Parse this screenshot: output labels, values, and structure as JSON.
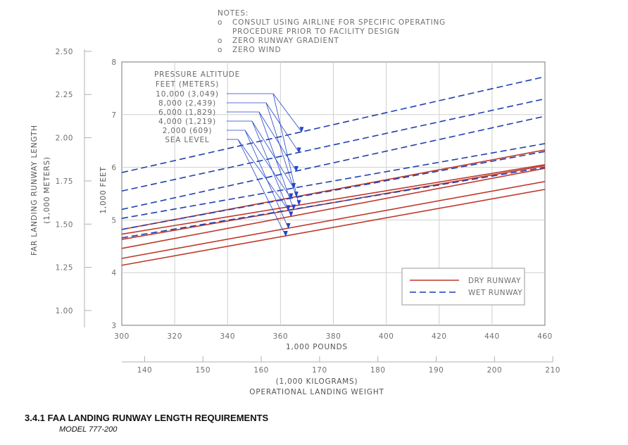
{
  "chart_data": {
    "type": "line",
    "notes": {
      "header": "NOTES:",
      "lines": [
        {
          "bullet": "o",
          "text": "CONSULT USING AIRLINE FOR SPECIFIC OPERATING"
        },
        {
          "bullet": "",
          "text": "PROCEDURE PRIOR TO FACILITY DESIGN"
        },
        {
          "bullet": "o",
          "text": "ZERO RUNWAY GRADIENT"
        },
        {
          "bullet": "o",
          "text": "ZERO WIND"
        }
      ]
    },
    "x_axis": {
      "label": "1,000 POUNDS",
      "range": [
        300,
        460
      ],
      "ticks": [
        300,
        320,
        340,
        360,
        380,
        400,
        420,
        440,
        460
      ]
    },
    "x2_axis": {
      "label_line1": "(1,000 KILOGRAMS)",
      "label_line2": "OPERATIONAL LANDING WEIGHT",
      "range": [
        136.08,
        208.65
      ],
      "ticks": [
        140,
        150,
        160,
        170,
        180,
        190,
        200,
        210
      ]
    },
    "y_axis": {
      "label": "1,000 FEET",
      "range": [
        3,
        8
      ],
      "ticks": [
        3,
        4,
        5,
        6,
        7,
        8
      ]
    },
    "y2_axis": {
      "label_line1": "FAR LANDING RUNWAY LENGTH",
      "label_line2": "(1,000 METERS)",
      "range": [
        0.9144,
        2.4384
      ],
      "ticks": [
        "1.00",
        "1.25",
        "1.50",
        "1.75",
        "2.00",
        "2.25",
        "2.50"
      ]
    },
    "pressure_altitude": {
      "title_line1": "PRESSURE ALTITUDE",
      "title_line2": "FEET (METERS)",
      "entries": [
        {
          "label": "10,000  (3,049)",
          "dry_x": 367,
          "wet_x": 368
        },
        {
          "label": "8,000  (2,439)",
          "dry_x": 366,
          "wet_x": 367
        },
        {
          "label": "6,000  (1,829)",
          "dry_x": 365,
          "wet_x": 366
        },
        {
          "label": "4,000  (1,219)",
          "dry_x": 364,
          "wet_x": 365
        },
        {
          "label": "2,000   (609)",
          "dry_x": 363,
          "wet_x": 364
        },
        {
          "label": "SEA LEVEL",
          "dry_x": 362,
          "wet_x": 363
        }
      ]
    },
    "series": [
      {
        "name": "DRY RUNWAY",
        "style": "dry",
        "altitude": "SEA LEVEL",
        "x": [
          300,
          460
        ],
        "y": [
          4.14,
          5.58
        ]
      },
      {
        "name": "DRY RUNWAY",
        "style": "dry",
        "altitude": "2,000",
        "x": [
          300,
          460
        ],
        "y": [
          4.27,
          5.73
        ]
      },
      {
        "name": "DRY RUNWAY",
        "style": "dry",
        "altitude": "4,000",
        "x": [
          300,
          460
        ],
        "y": [
          4.46,
          5.98
        ]
      },
      {
        "name": "DRY RUNWAY",
        "style": "dry",
        "altitude": "6,000",
        "x": [
          300,
          460
        ],
        "y": [
          4.63,
          6.03
        ]
      },
      {
        "name": "DRY RUNWAY",
        "style": "dry",
        "altitude": "8,000",
        "x": [
          300,
          460
        ],
        "y": [
          4.82,
          6.33
        ]
      },
      {
        "name": "DRY RUNWAY",
        "style": "dry",
        "altitude": "10,000",
        "x": [
          300,
          460
        ],
        "y": [
          4.73,
          6.05
        ]
      },
      {
        "name": "WET RUNWAY",
        "style": "wet",
        "altitude": "SEA LEVEL",
        "x": [
          300,
          460
        ],
        "y": [
          4.66,
          6.0
        ]
      },
      {
        "name": "WET RUNWAY",
        "style": "wet",
        "altitude": "2,000",
        "x": [
          300,
          460
        ],
        "y": [
          4.82,
          6.3
        ]
      },
      {
        "name": "WET RUNWAY",
        "style": "wet",
        "altitude": "4,000",
        "x": [
          300,
          460
        ],
        "y": [
          5.03,
          6.45
        ]
      },
      {
        "name": "WET RUNWAY",
        "style": "wet",
        "altitude": "6,000",
        "x": [
          300,
          460
        ],
        "y": [
          5.2,
          6.97
        ]
      },
      {
        "name": "WET RUNWAY",
        "style": "wet",
        "altitude": "8,000",
        "x": [
          300,
          460
        ],
        "y": [
          5.55,
          7.3
        ]
      },
      {
        "name": "WET RUNWAY",
        "style": "wet",
        "altitude": "10,000",
        "x": [
          300,
          460
        ],
        "y": [
          5.9,
          7.72
        ]
      }
    ],
    "legend": {
      "placement": "bottom-right",
      "items": [
        {
          "label": "DRY RUNWAY",
          "style": "dry"
        },
        {
          "label": "WET RUNWAY",
          "style": "wet"
        }
      ]
    },
    "colors": {
      "dry": "#c0392b",
      "wet": "#1f3fae",
      "axis": "#888888",
      "leader": "#2244cc"
    },
    "grid": "vertical and horizontal major lines at tick values"
  },
  "caption": {
    "title": "3.4.1  FAA  LANDING  RUNWAY LENGTH REQUIREMENTS",
    "subtitle": "MODEL  777-200"
  }
}
